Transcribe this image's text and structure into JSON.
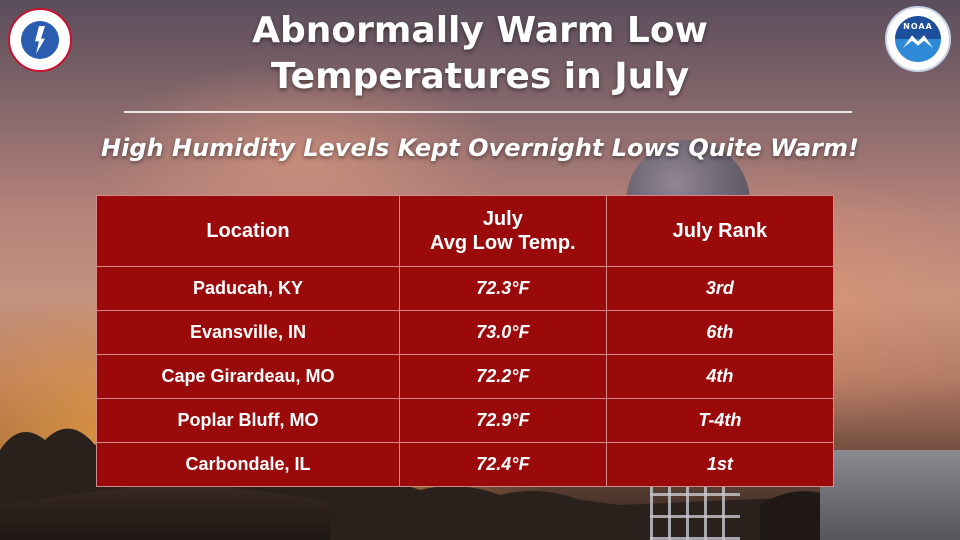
{
  "title_line1": "Abnormally Warm Low",
  "title_line2": "Temperatures in July",
  "subtitle": "High Humidity Levels Kept Overnight Lows Quite Warm!",
  "logos": {
    "nws": {
      "icon": "nws-logo-icon"
    },
    "noaa": {
      "icon": "noaa-logo-icon",
      "text": "NOAA"
    }
  },
  "table": {
    "headers": [
      "Location",
      "July",
      "Avg Low Temp.",
      "July Rank"
    ],
    "rows": [
      {
        "location": "Paducah, KY",
        "avg_low": "72.3°F",
        "rank": "3rd"
      },
      {
        "location": "Evansville, IN",
        "avg_low": "73.0°F",
        "rank": "6th"
      },
      {
        "location": "Cape Girardeau, MO",
        "avg_low": "72.2°F",
        "rank": "4th"
      },
      {
        "location": "Poplar Bluff, MO",
        "avg_low": "72.9°F",
        "rank": "T-4th"
      },
      {
        "location": "Carbondale, IL",
        "avg_low": "72.4°F",
        "rank": "1st"
      }
    ]
  },
  "colors": {
    "table_bg": "#9b0a0a",
    "text": "#ffffff"
  }
}
